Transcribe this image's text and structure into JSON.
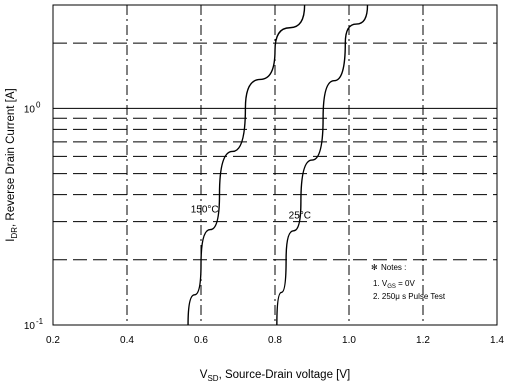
{
  "chart_data": {
    "type": "line",
    "xlabel": {
      "prefix": "V",
      "sub": "SD",
      "rest": ", Source-Drain voltage [V]"
    },
    "ylabel": {
      "prefix": "I",
      "sub": "DR",
      "rest": ", Reverse Drain Current [A]"
    },
    "xlim": [
      0.2,
      1.4
    ],
    "ylim": [
      0.1,
      3.0
    ],
    "yscale": "log",
    "grid": true,
    "x_ticks": [
      "0.2",
      "0.4",
      "0.6",
      "0.8",
      "1.0",
      "1.2",
      "1.4"
    ],
    "y_ticks": [
      {
        "base": "10",
        "exp": "-1",
        "value": 0.1
      },
      {
        "base": "10",
        "exp": "0",
        "value": 1
      }
    ],
    "series": [
      {
        "name": "150°C",
        "x": [
          0.565,
          0.6,
          0.65,
          0.72,
          0.8,
          0.88
        ],
        "y": [
          0.1,
          0.19,
          0.4,
          1.0,
          1.85,
          3.0
        ]
      },
      {
        "name": "25°C",
        "x": [
          0.805,
          0.83,
          0.87,
          0.93,
          0.99,
          1.05
        ],
        "y": [
          0.1,
          0.2,
          0.37,
          0.9,
          2.0,
          3.0
        ]
      }
    ],
    "notes": {
      "title": "Notes :",
      "line1": {
        "prefix": "1. V",
        "sub": "GS",
        "rest": " = 0V"
      },
      "line2": "2. 250μ s Pulse Test"
    }
  }
}
